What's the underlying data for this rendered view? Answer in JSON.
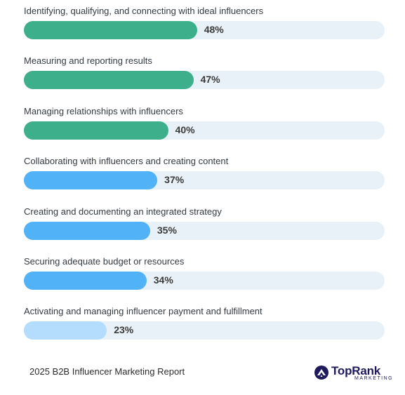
{
  "chart_data": {
    "type": "bar",
    "orientation": "horizontal",
    "categories": [
      "Identifying, qualifying, and connecting with ideal influencers",
      "Measuring and reporting results",
      "Managing relationships with influencers",
      "Collaborating with influencers and creating content",
      "Creating and documenting an integrated strategy",
      "Securing adequate budget or resources",
      "Activating and managing influencer payment and fulfillment"
    ],
    "values": [
      48,
      47,
      40,
      37,
      35,
      34,
      23
    ],
    "value_labels": [
      "48%",
      "47%",
      "40%",
      "37%",
      "35%",
      "34%",
      "23%"
    ],
    "xlim": [
      0,
      100
    ],
    "colors": [
      "#3daf8b",
      "#3daf8b",
      "#3daf8b",
      "#52b2f7",
      "#52b2f7",
      "#52b2f7",
      "#b3dcfd"
    ],
    "track_color": "#e8f1f7",
    "grid": false
  },
  "footer": {
    "source": "2025 B2B Influencer Marketing Report",
    "brand_name": "TopRank",
    "brand_sub": "MARKETING",
    "brand_icon": "toprank-logo-icon",
    "brand_color": "#1f1a5c"
  }
}
